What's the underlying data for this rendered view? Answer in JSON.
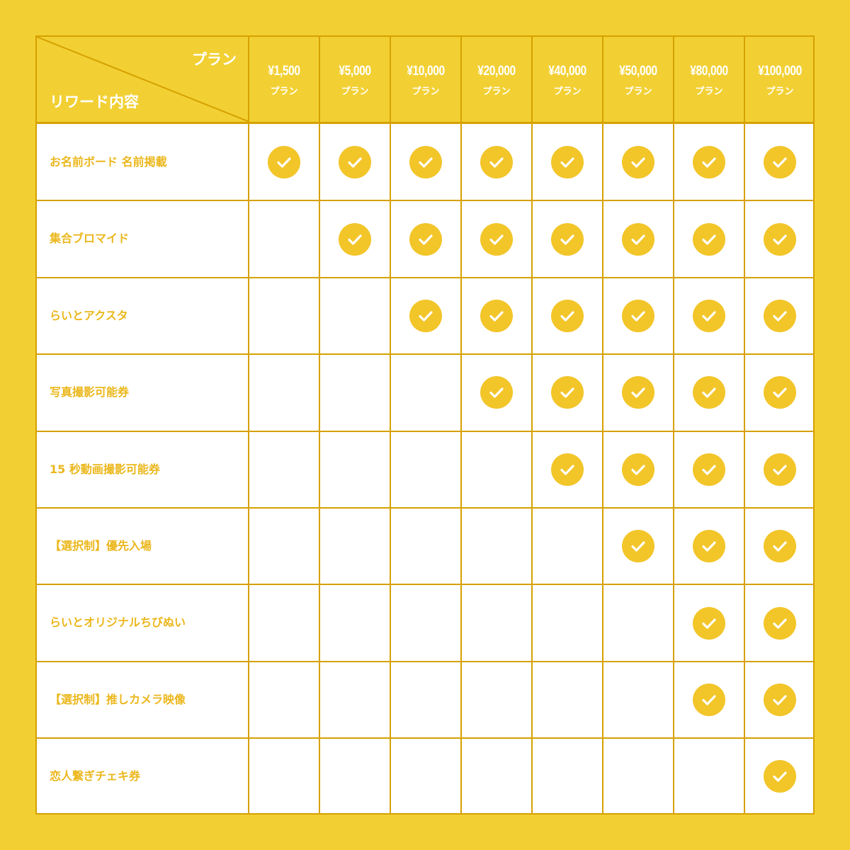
{
  "header": {
    "plan_label": "プラン",
    "reward_label": "リワード内容"
  },
  "plans": [
    {
      "price": "¥1,500",
      "label": "プラン"
    },
    {
      "price": "¥5,000",
      "label": "プラン"
    },
    {
      "price": "¥10,000",
      "label": "プラン"
    },
    {
      "price": "¥20,000",
      "label": "プラン"
    },
    {
      "price": "¥40,000",
      "label": "プラン"
    },
    {
      "price": "¥50,000",
      "label": "プラン"
    },
    {
      "price": "¥80,000",
      "label": "プラン"
    },
    {
      "price": "¥100,000",
      "label": "プラン"
    }
  ],
  "rewards": [
    {
      "label": "お名前ボード 名前掲載",
      "included": [
        true,
        true,
        true,
        true,
        true,
        true,
        true,
        true
      ]
    },
    {
      "label": "集合ブロマイド",
      "included": [
        false,
        true,
        true,
        true,
        true,
        true,
        true,
        true
      ]
    },
    {
      "label": "らいとアクスタ",
      "included": [
        false,
        false,
        true,
        true,
        true,
        true,
        true,
        true
      ]
    },
    {
      "label": "写真撮影可能券",
      "included": [
        false,
        false,
        false,
        true,
        true,
        true,
        true,
        true
      ]
    },
    {
      "label": "15 秒動画撮影可能券",
      "included": [
        false,
        false,
        false,
        false,
        true,
        true,
        true,
        true
      ]
    },
    {
      "label": "【選択制】優先入場",
      "included": [
        false,
        false,
        false,
        false,
        false,
        true,
        true,
        true
      ]
    },
    {
      "label": "らいとオリジナルちびぬい",
      "included": [
        false,
        false,
        false,
        false,
        false,
        false,
        true,
        true
      ]
    },
    {
      "label": "【選択制】推しカメラ映像",
      "included": [
        false,
        false,
        false,
        false,
        false,
        false,
        true,
        true
      ]
    },
    {
      "label": "恋人繋ぎチェキ券",
      "included": [
        false,
        false,
        false,
        false,
        false,
        false,
        false,
        true
      ]
    }
  ],
  "colors": {
    "background": "#F2D033",
    "border": "#D6A100",
    "check": "#F2C529",
    "label_text": "#EBB71C",
    "header_text": "#FFFFFF"
  },
  "icons": {
    "check": "check-circle-icon"
  }
}
